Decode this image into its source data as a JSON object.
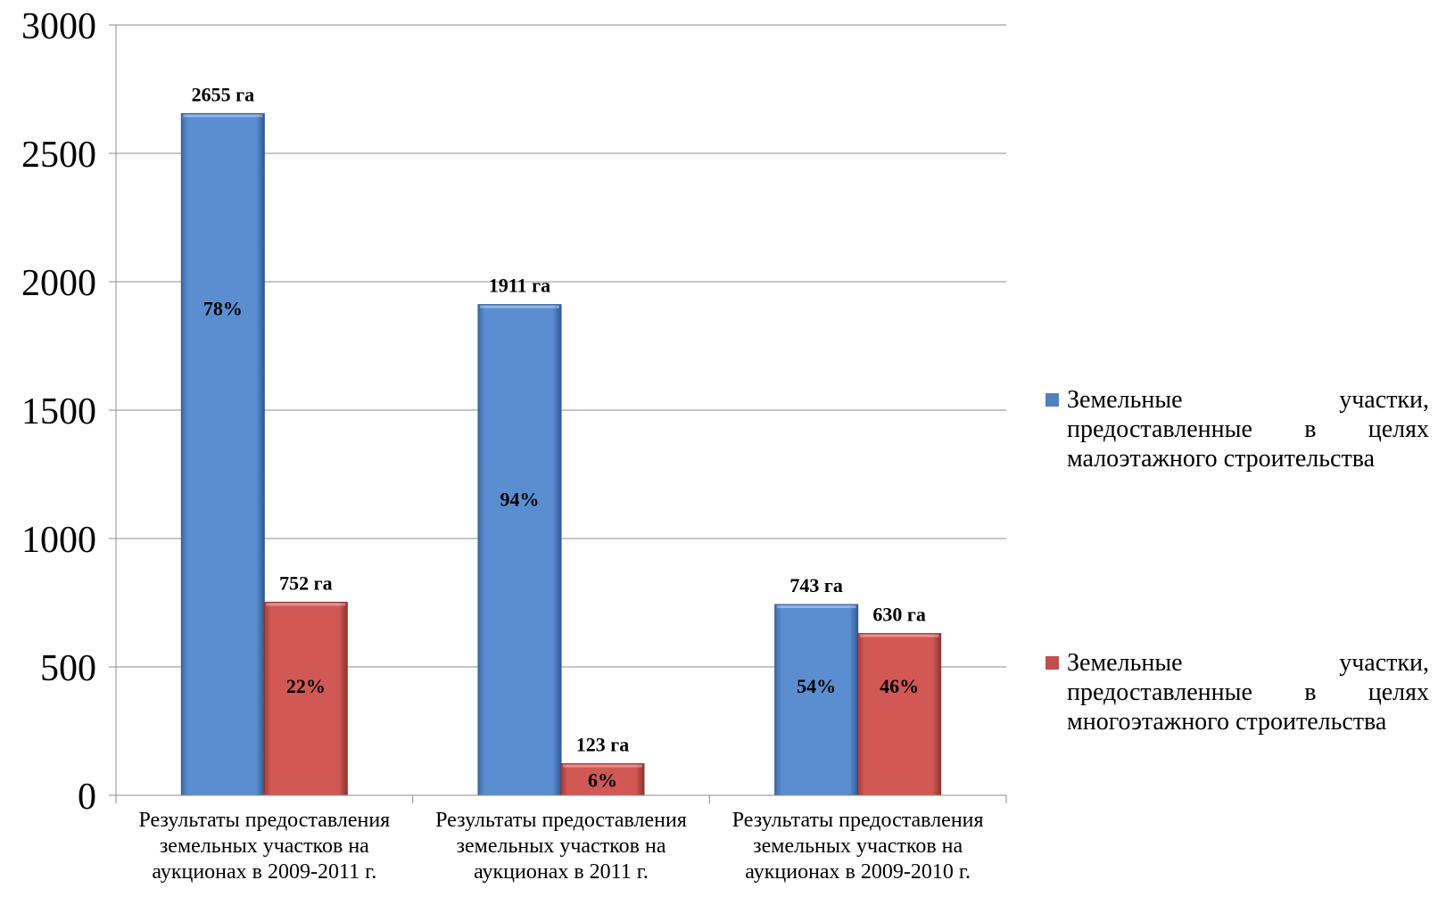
{
  "chart_data": {
    "type": "bar",
    "title": "",
    "xlabel": "",
    "ylabel": "",
    "ylim": [
      0,
      3000
    ],
    "yticks": [
      "0",
      "500",
      "1000",
      "1500",
      "2000",
      "2500",
      "3000"
    ],
    "grid": true,
    "legend_position": "right",
    "categories": [
      "Результаты предоставления земельных участков на аукционах в 2009-2011 г.",
      "Результаты предоставления земельных участков на аукционах в 2011 г.",
      "Результаты предоставления земельных участков на аукционах в 2009-2010 г."
    ],
    "series": [
      {
        "name": "Земельные участки, предоставленные в целях малоэтажного строительства",
        "color": "#4f81bd",
        "values": [
          2655,
          1911,
          743
        ],
        "value_labels": [
          "2655 га",
          "1911 га",
          "743 га"
        ],
        "percent_labels": [
          "78%",
          "94%",
          "54%"
        ]
      },
      {
        "name": "Земельные участки, предоставленные в целях многоэтажного строительства",
        "color": "#c0504d",
        "values": [
          752,
          123,
          630
        ],
        "value_labels": [
          "752 га",
          "123 га",
          "630 га"
        ],
        "percent_labels": [
          "22%",
          "6%",
          "46%"
        ]
      }
    ]
  }
}
